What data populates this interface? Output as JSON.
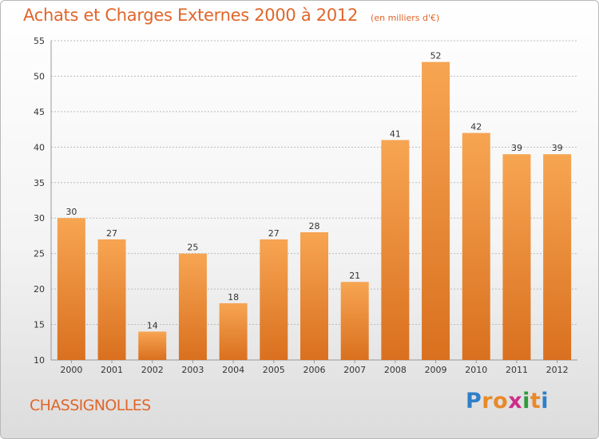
{
  "header": {
    "title": "Achats et Charges Externes 2000 à 2012",
    "subtitle": "(en milliers d'€)"
  },
  "footer": {
    "commune": "CHASSIGNOLLES",
    "logo_letters": [
      "P",
      "r",
      "o",
      "x",
      "i",
      "t",
      "i"
    ],
    "logo_colors": [
      "#2f7fc8",
      "#e8892a",
      "#e8892a",
      "#cc2d8a",
      "#2f9a3c",
      "#e8892a",
      "#2f7fc8"
    ]
  },
  "colors": {
    "bar_light": "#f7a552",
    "bar_dark": "#d9701f",
    "accent": "#e0662a",
    "grid": "#bbbbbb",
    "axis_text": "#333333"
  },
  "chart_data": {
    "type": "bar",
    "categories": [
      "2000",
      "2001",
      "2002",
      "2003",
      "2004",
      "2005",
      "2006",
      "2007",
      "2008",
      "2009",
      "2010",
      "2011",
      "2012"
    ],
    "values": [
      30,
      27,
      14,
      25,
      18,
      27,
      28,
      21,
      41,
      52,
      42,
      39,
      39
    ],
    "ylim": [
      10,
      55
    ],
    "yticks": [
      10,
      15,
      20,
      25,
      30,
      35,
      40,
      45,
      50,
      55
    ],
    "grid": true,
    "data_labels": true
  }
}
